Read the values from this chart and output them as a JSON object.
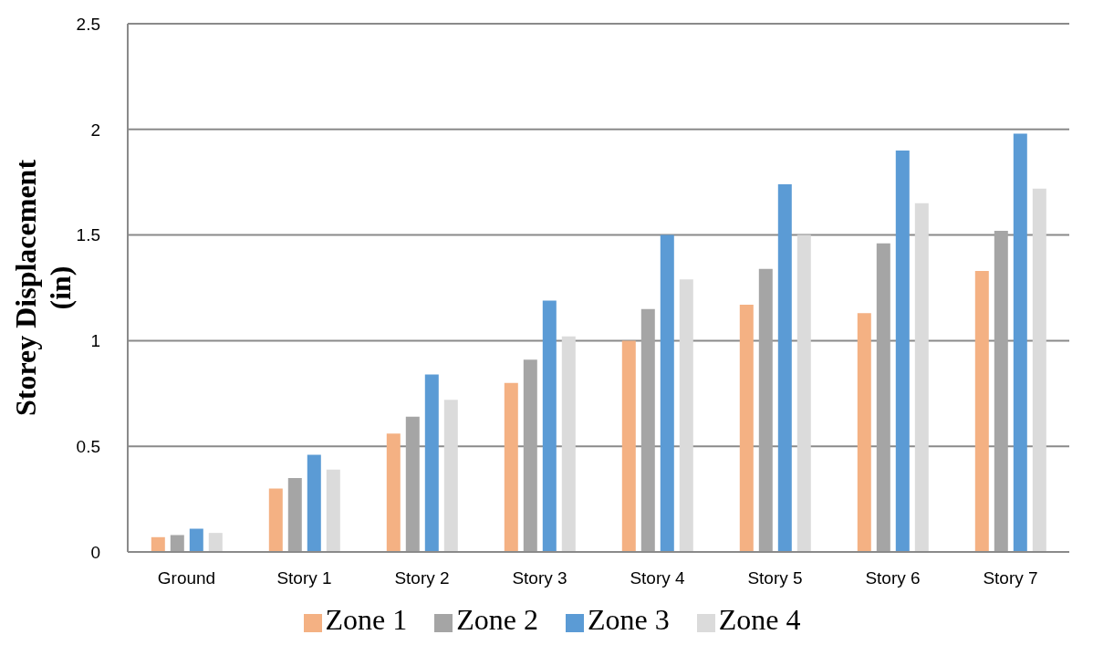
{
  "chart_data": {
    "type": "bar",
    "ylabel": "Storey Displacement\n(in)",
    "categories": [
      "Ground",
      "Story 1",
      "Story 2",
      "Story 3",
      "Story 4",
      "Story 5",
      "Story 6",
      "Story 7"
    ],
    "series": [
      {
        "name": "Zone 1",
        "color": "#f4b183",
        "values": [
          0.07,
          0.3,
          0.56,
          0.8,
          1.0,
          1.17,
          1.13,
          1.33
        ]
      },
      {
        "name": "Zone 2",
        "color": "#a5a5a5",
        "values": [
          0.08,
          0.35,
          0.64,
          0.91,
          1.15,
          1.34,
          1.46,
          1.52
        ]
      },
      {
        "name": "Zone 3",
        "color": "#5b9bd5",
        "values": [
          0.11,
          0.46,
          0.84,
          1.19,
          1.5,
          1.74,
          1.9,
          1.98
        ]
      },
      {
        "name": "Zone 4",
        "color": "#dbdbdb",
        "values": [
          0.09,
          0.39,
          0.72,
          1.02,
          1.29,
          1.5,
          1.65,
          1.72
        ]
      }
    ],
    "ylim": [
      0,
      2.5
    ],
    "yticks": [
      0,
      0.5,
      1,
      1.5,
      2,
      2.5
    ],
    "grid": "y",
    "legend": "bottom"
  }
}
